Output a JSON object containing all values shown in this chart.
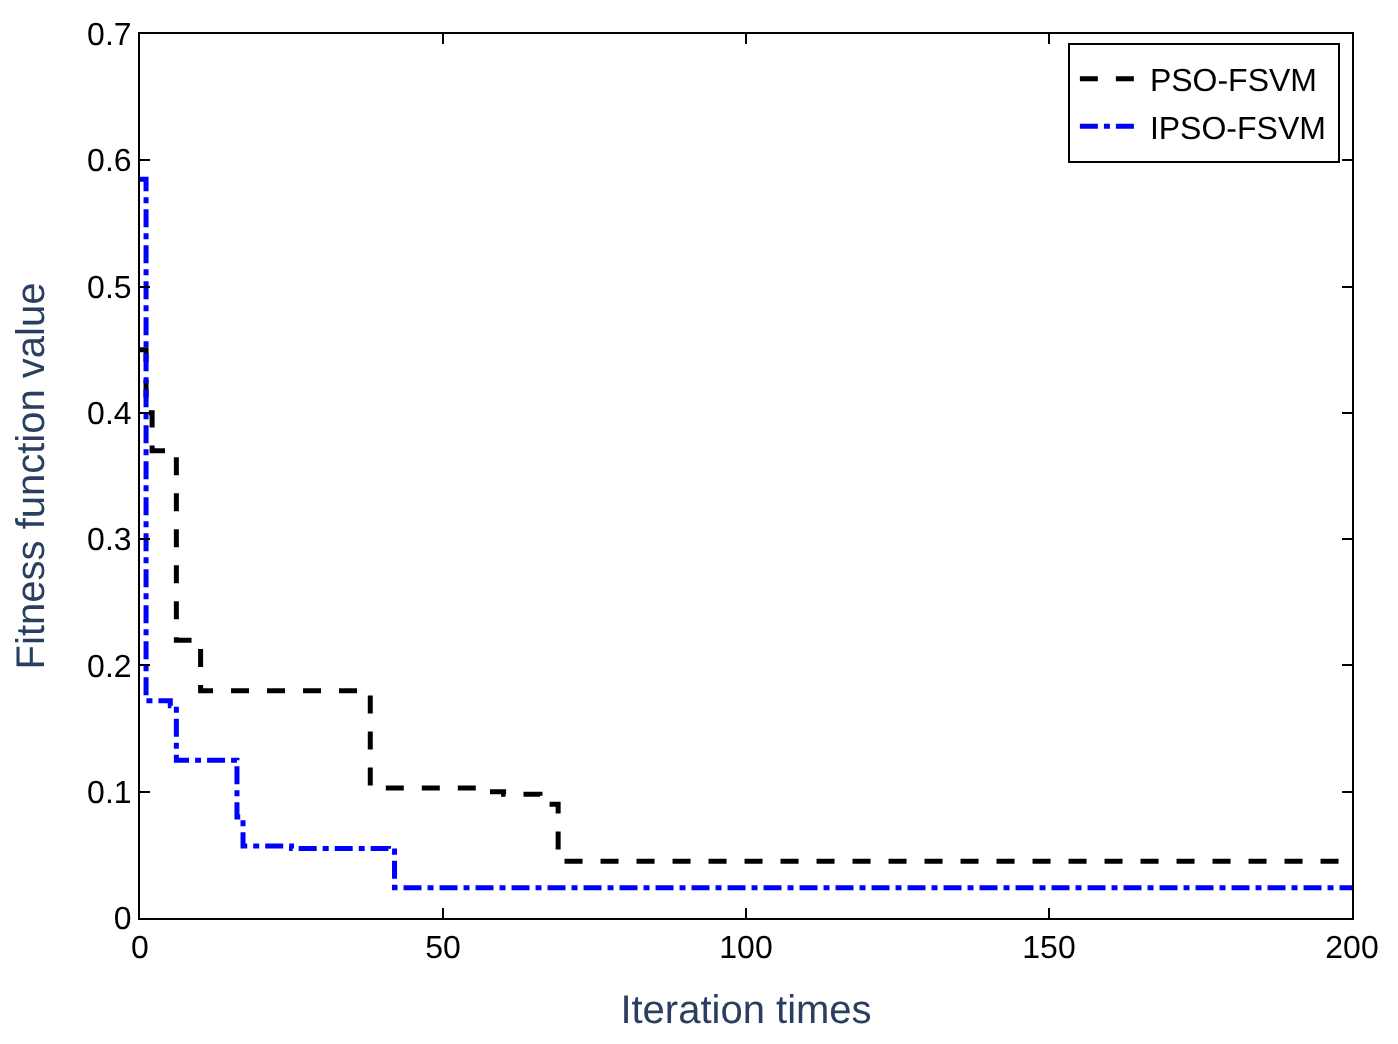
{
  "chart_data": {
    "type": "step",
    "xlabel": "Iteration times",
    "ylabel": "Fitness function value",
    "xlim": [
      0,
      200
    ],
    "xticks": [
      0,
      50,
      100,
      150,
      200
    ],
    "ylim": [
      0,
      0.7
    ],
    "yticks": [
      0,
      0.1,
      0.2,
      0.3,
      0.4,
      0.5,
      0.6,
      0.7
    ],
    "grid": false,
    "legend": "top right",
    "marker": "none",
    "series": [
      {
        "name": "PSO-FSVM",
        "color": "#000000",
        "line_style": "dashed",
        "x": [
          0,
          1,
          2,
          6,
          7,
          8,
          10,
          38,
          40,
          56,
          60,
          66,
          68,
          69,
          200
        ],
        "values": [
          0.45,
          0.4,
          0.37,
          0.22,
          0.22,
          0.22,
          0.18,
          0.103,
          0.103,
          0.1,
          0.098,
          0.093,
          0.09,
          0.045,
          0.045
        ]
      },
      {
        "name": "IPSO-FSVM",
        "color": "#0000ff",
        "line_style": "dashdot",
        "x": [
          0,
          1,
          5,
          6,
          16,
          17,
          25,
          41,
          42,
          200
        ],
        "values": [
          0.585,
          0.172,
          0.168,
          0.125,
          0.08,
          0.057,
          0.055,
          0.053,
          0.024,
          0.024
        ]
      }
    ]
  }
}
